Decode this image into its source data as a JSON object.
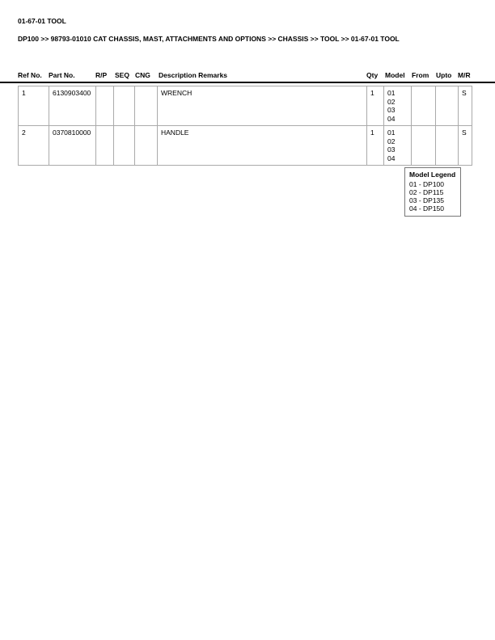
{
  "title": "01-67-01 TOOL",
  "breadcrumb": "DP100 >> 98793-01010 CAT CHASSIS, MAST, ATTACHMENTS AND OPTIONS >> CHASSIS >> TOOL >> 01-67-01 TOOL",
  "columns": [
    "Ref No.",
    "Part No.",
    "R/P",
    "SEQ",
    "CNG",
    "Description Remarks",
    "Qty",
    "Model",
    "From",
    "Upto",
    "M/R"
  ],
  "rows": [
    {
      "ref": "1",
      "part": "6130903400",
      "rp": "",
      "seq": "",
      "cng": "",
      "desc": "WRENCH",
      "qty": "1",
      "models": [
        "01",
        "02",
        "03",
        "04"
      ],
      "from": "",
      "upto": "",
      "mr": "S"
    },
    {
      "ref": "2",
      "part": "0370810000",
      "rp": "",
      "seq": "",
      "cng": "",
      "desc": "HANDLE",
      "qty": "1",
      "models": [
        "01",
        "02",
        "03",
        "04"
      ],
      "from": "",
      "upto": "",
      "mr": "S"
    }
  ],
  "legend": {
    "title": "Model Legend",
    "items": [
      "01 - DP100",
      "02 - DP115",
      "03 - DP135",
      "04 - DP150"
    ]
  }
}
